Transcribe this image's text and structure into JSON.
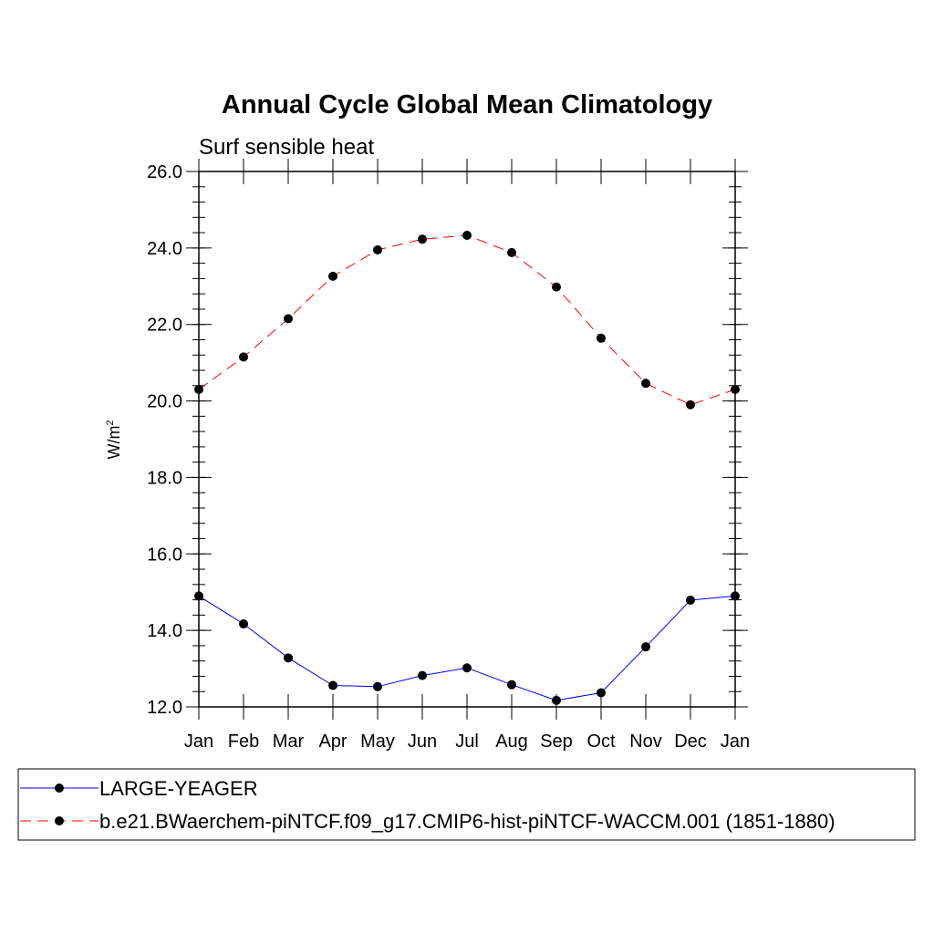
{
  "chart_data": {
    "type": "line",
    "title": "Annual Cycle Global Mean Climatology",
    "subtitle": "Surf sensible heat",
    "ylabel": "W/m",
    "ylabel_sup": "2",
    "xlabel": "",
    "categories": [
      "Jan",
      "Feb",
      "Mar",
      "Apr",
      "May",
      "Jun",
      "Jul",
      "Aug",
      "Sep",
      "Oct",
      "Nov",
      "Dec",
      "Jan"
    ],
    "ylim": [
      12.0,
      26.0
    ],
    "y_ticks": [
      "12.0",
      "14.0",
      "16.0",
      "18.0",
      "20.0",
      "22.0",
      "24.0",
      "26.0"
    ],
    "series": [
      {
        "name": "LARGE-YEAGER",
        "color": "#0000ff",
        "dash": "solid",
        "values": [
          14.9,
          14.17,
          13.28,
          12.56,
          12.53,
          12.82,
          13.02,
          12.58,
          12.17,
          12.37,
          13.57,
          14.79,
          14.9
        ]
      },
      {
        "name": "b.e21.BWaerchem-piNTCF.f09_g17.CMIP6-hist-piNTCF-WACCM.001 (1851-1880)",
        "color": "#ff0000",
        "dash": "dashed",
        "values": [
          20.3,
          21.15,
          22.15,
          23.26,
          23.95,
          24.23,
          24.33,
          23.88,
          22.98,
          21.64,
          20.46,
          19.9,
          20.3
        ]
      }
    ],
    "legend_position": "bottom"
  }
}
